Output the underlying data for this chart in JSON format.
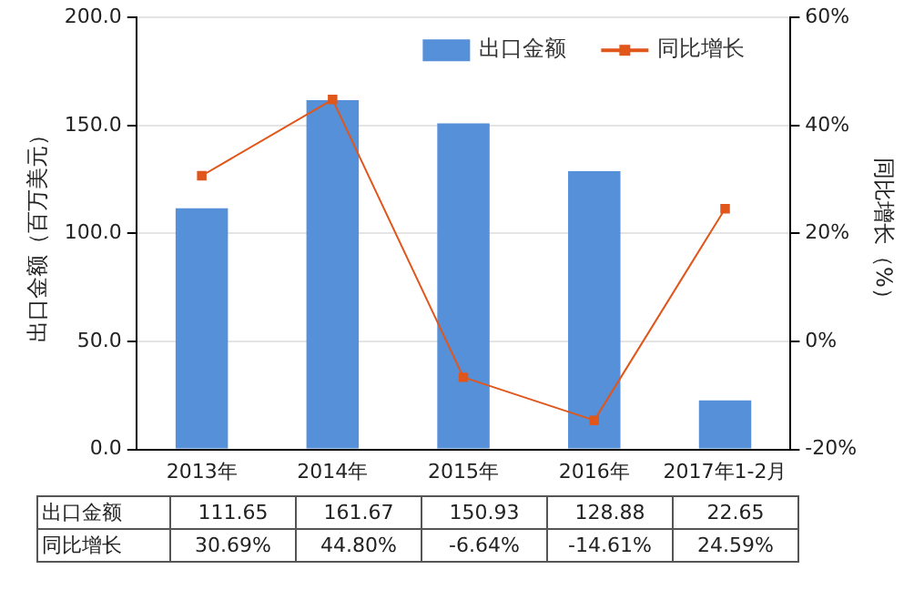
{
  "chart_data": {
    "type": "bar",
    "ylabel": "出口金额（百万美元）",
    "y2label": "同比增长（%）",
    "categories": [
      "2013年",
      "2014年",
      "2015年",
      "2016年",
      "2017年1-2月"
    ],
    "series": [
      {
        "name": "出口金额",
        "color": "#5590d8",
        "values": [
          111.65,
          161.67,
          150.93,
          128.88,
          22.65
        ],
        "value_labels": [
          "111.65",
          "161.67",
          "150.93",
          "128.88",
          "22.65"
        ]
      },
      {
        "name": "同比增长",
        "type": "line",
        "axis": "y2",
        "color": "#e0561b",
        "marker": "square",
        "values": [
          30.69,
          44.8,
          -6.64,
          -14.61,
          24.59
        ],
        "value_labels": [
          "30.69%",
          "44.80%",
          "-6.64%",
          "-14.61%",
          "24.59%"
        ]
      }
    ],
    "ylim": [
      0,
      200
    ],
    "yticks": [
      {
        "value": 0,
        "label": "0.0"
      },
      {
        "value": 50,
        "label": "50.0"
      },
      {
        "value": 100,
        "label": "100.0"
      },
      {
        "value": 150,
        "label": "150.0"
      },
      {
        "value": 200,
        "label": "200.0"
      }
    ],
    "y2lim": [
      -20,
      60
    ],
    "y2ticks": [
      {
        "value": -20,
        "label": "-20%"
      },
      {
        "value": 0,
        "label": "0%"
      },
      {
        "value": 20,
        "label": "20%"
      },
      {
        "value": 40,
        "label": "40%"
      },
      {
        "value": 60,
        "label": "60%"
      }
    ],
    "grid": "y",
    "legend": "top right"
  }
}
